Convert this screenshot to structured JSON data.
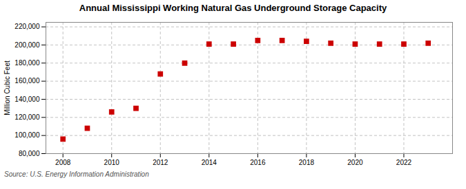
{
  "chart_data": {
    "type": "scatter",
    "title": "Annual Mississippi Working Natural Gas Underground Storage Capacity",
    "y_label": "Million Cubic Feet",
    "source": "Source: U.S. Energy Information Administration",
    "x": [
      2008,
      2009,
      2010,
      2011,
      2012,
      2013,
      2014,
      2015,
      2016,
      2017,
      2018,
      2019,
      2020,
      2021,
      2022,
      2023
    ],
    "values": [
      96000,
      108000,
      126000,
      130000,
      168000,
      180000,
      201000,
      201000,
      205000,
      205000,
      204000,
      202000,
      201000,
      201000,
      201000,
      202000
    ],
    "color": "#cc0000",
    "marker": "square",
    "xlim": [
      2007.3,
      2024
    ],
    "xticks": [
      2008,
      2010,
      2012,
      2014,
      2016,
      2018,
      2020,
      2022
    ],
    "ylim": [
      80000,
      225000
    ],
    "yticks": [
      {
        "value": 80000,
        "label": "80,000"
      },
      {
        "value": 100000,
        "label": "100,000"
      },
      {
        "value": 120000,
        "label": "120,000"
      },
      {
        "value": 140000,
        "label": "140,000"
      },
      {
        "value": 160000,
        "label": "160,000"
      },
      {
        "value": 180000,
        "label": "180,000"
      },
      {
        "value": 200000,
        "label": "200,000"
      },
      {
        "value": 220000,
        "label": "220,000"
      }
    ],
    "grid": true
  }
}
